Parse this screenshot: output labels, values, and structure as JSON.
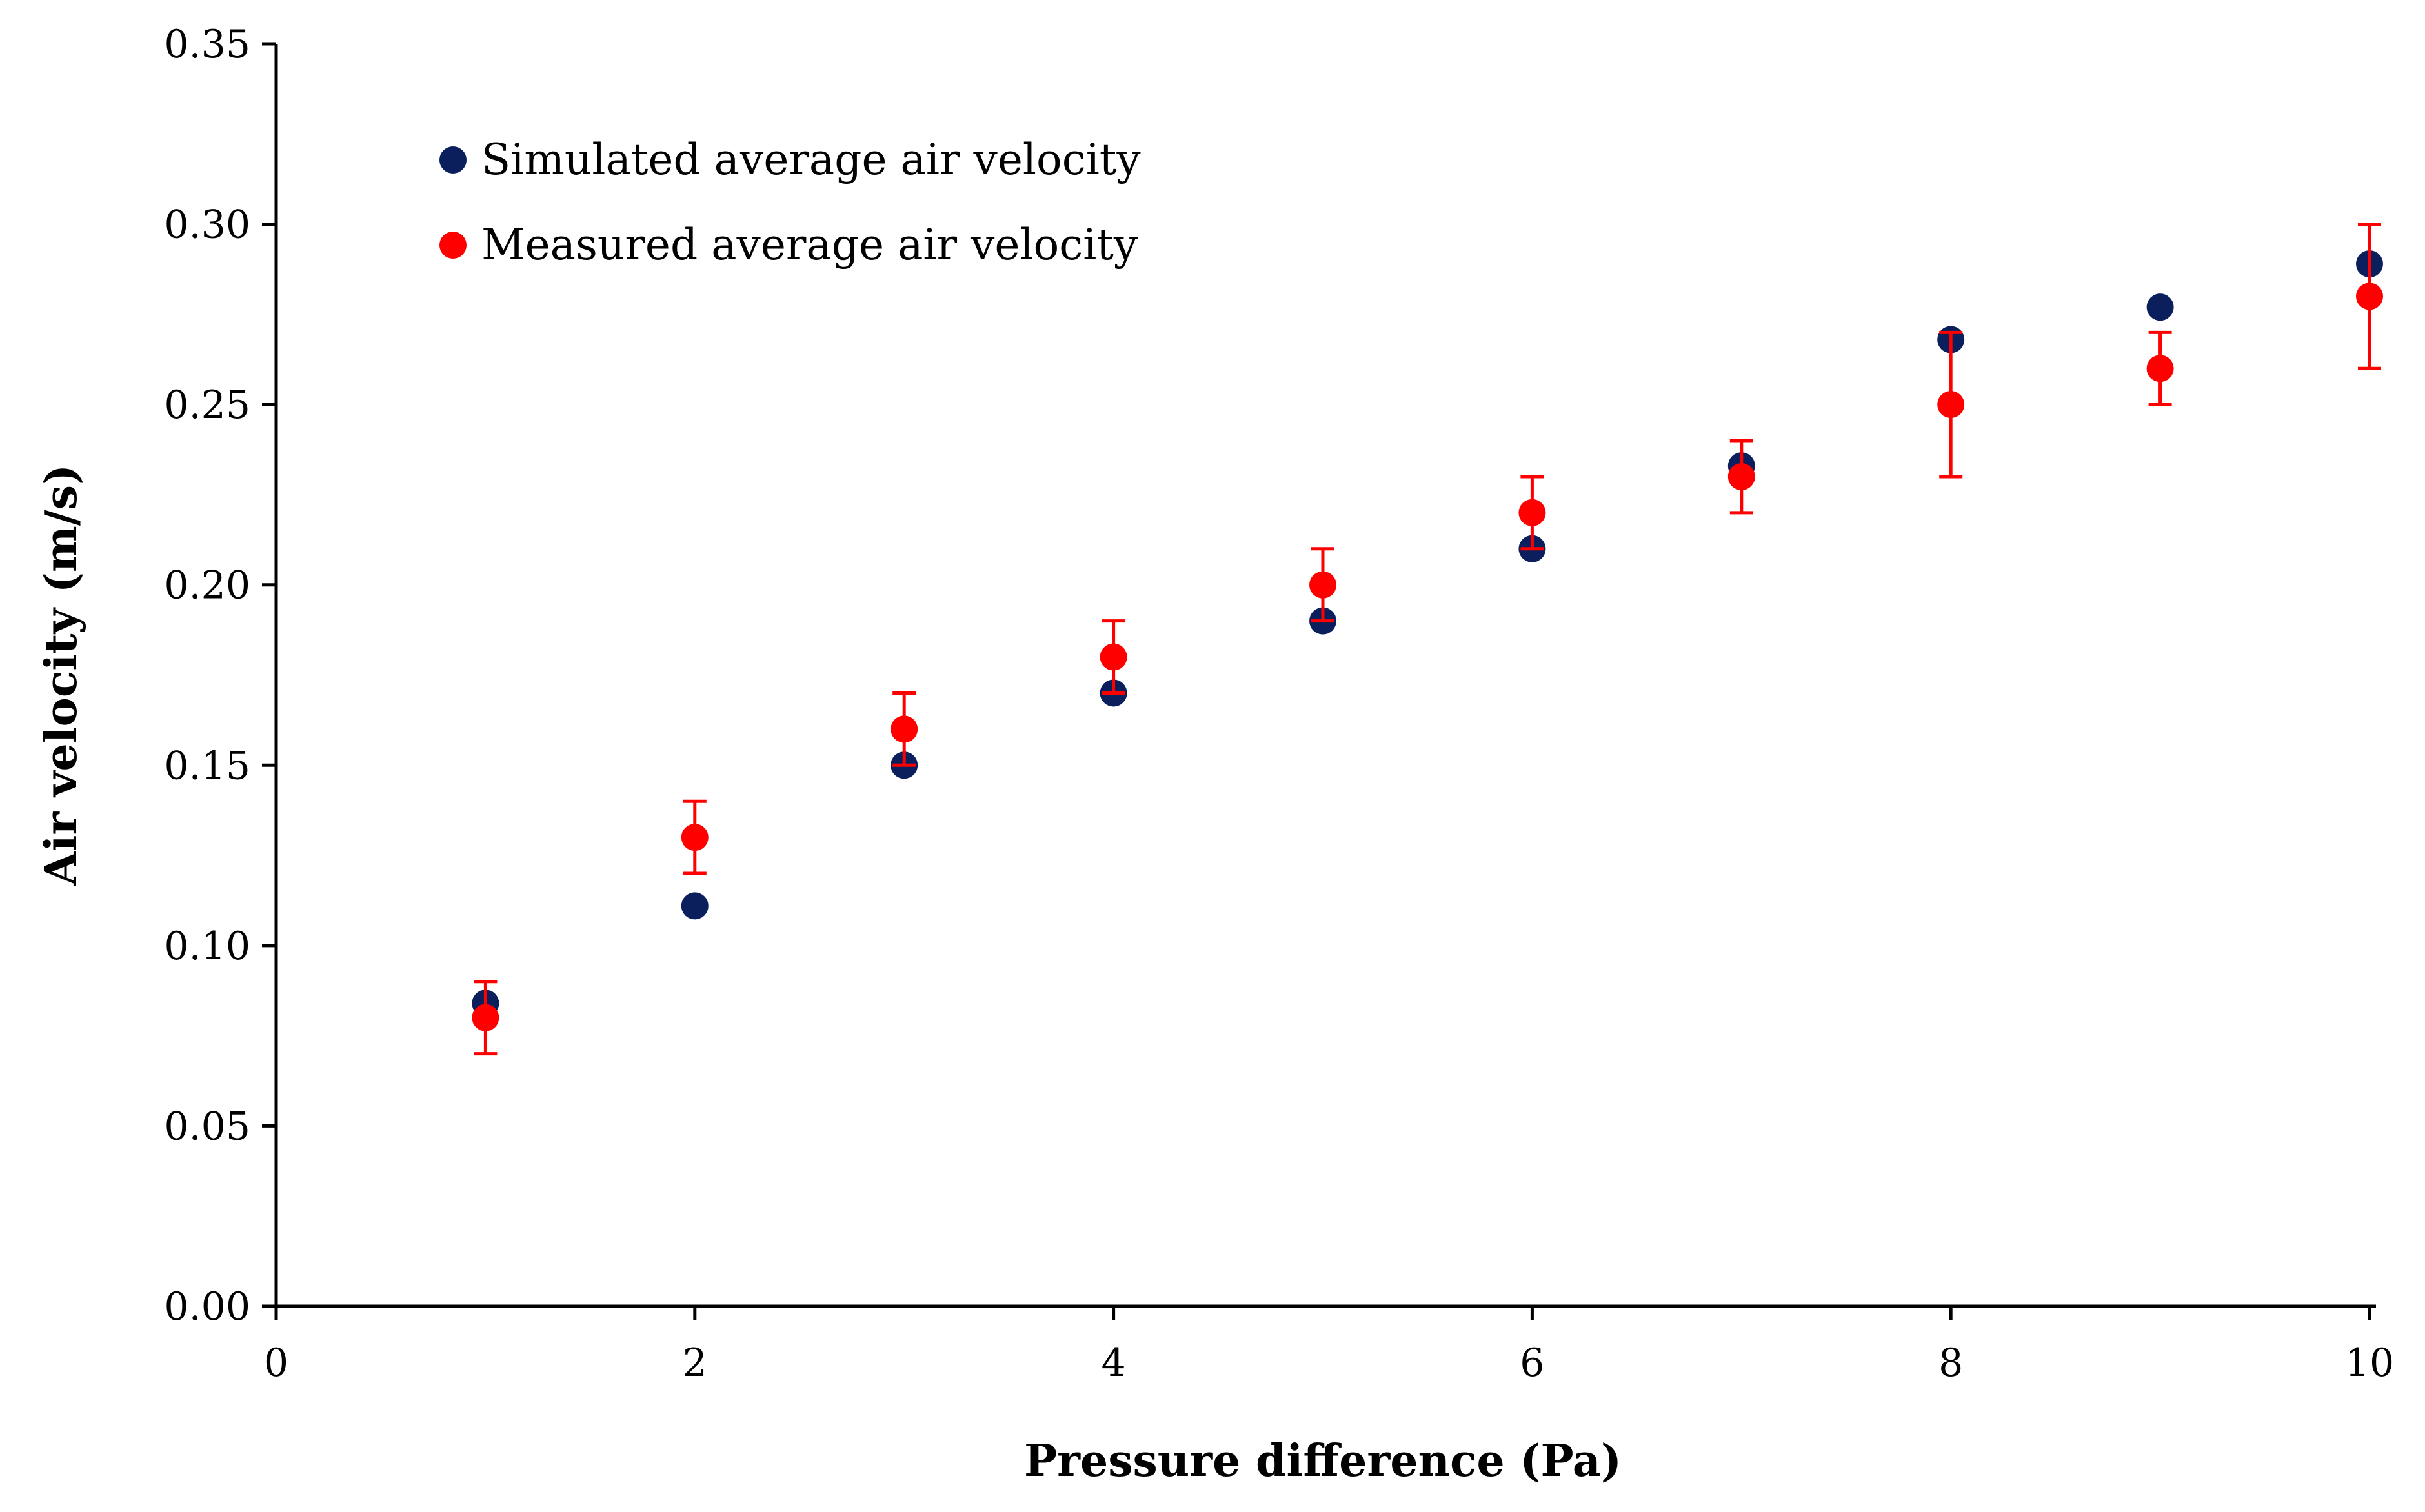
{
  "chart_data": {
    "type": "scatter",
    "title": "",
    "xlabel": "Pressure difference (Pa)",
    "ylabel": "Air velocity (m/s)",
    "xlim": [
      0,
      10
    ],
    "ylim": [
      0,
      0.35
    ],
    "x_ticks": [
      "0",
      "2",
      "4",
      "6",
      "8",
      "10"
    ],
    "y_ticks": [
      "0.00",
      "0.05",
      "0.10",
      "0.15",
      "0.20",
      "0.25",
      "0.30",
      "0.35"
    ],
    "grid": false,
    "legend_position": "top-left",
    "series": [
      {
        "name": "Simulated average air velocity",
        "color": "#0a1f5c",
        "x": [
          1,
          2,
          3,
          4,
          5,
          6,
          7,
          8,
          9,
          10
        ],
        "y": [
          0.084,
          0.111,
          0.15,
          0.17,
          0.19,
          0.21,
          0.233,
          0.268,
          0.277,
          0.289
        ]
      },
      {
        "name": "Measured average air velocity",
        "color": "#ff0000",
        "x": [
          1,
          2,
          3,
          4,
          5,
          6,
          7,
          8,
          9,
          10
        ],
        "y": [
          0.08,
          0.13,
          0.16,
          0.18,
          0.2,
          0.22,
          0.23,
          0.25,
          0.26,
          0.28
        ],
        "error": [
          0.01,
          0.01,
          0.01,
          0.01,
          0.01,
          0.01,
          0.01,
          0.02,
          0.01,
          0.02
        ]
      }
    ]
  }
}
